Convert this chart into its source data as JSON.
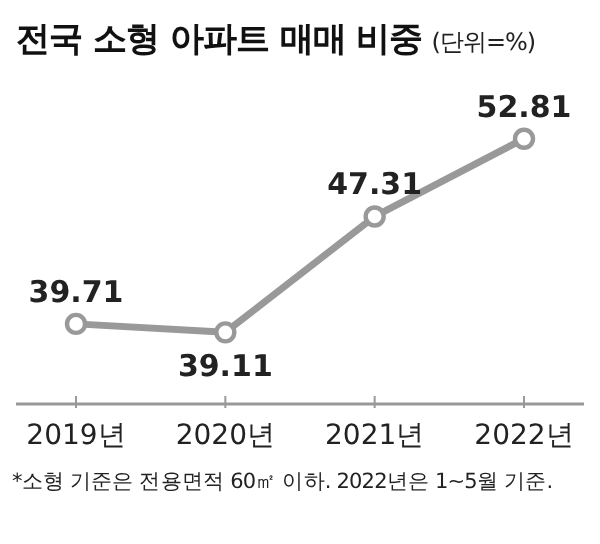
{
  "chart_data": {
    "type": "line",
    "title": "전국 소형 아파트 매매 비중",
    "subtitle": "(단위=%)",
    "categories": [
      "2019년",
      "2020년",
      "2021년",
      "2022년"
    ],
    "series": [
      {
        "color": "#999999",
        "values": [
          39.71,
          39.11,
          47.31,
          52.81
        ]
      }
    ],
    "data_labels": true,
    "marker": "circle",
    "legend": false,
    "grid": false,
    "tick_labels": "x",
    "annotations": [
      "*소형 기준은 전용면적 60㎡ 이하. 2022년은 1~5월 기준."
    ]
  }
}
